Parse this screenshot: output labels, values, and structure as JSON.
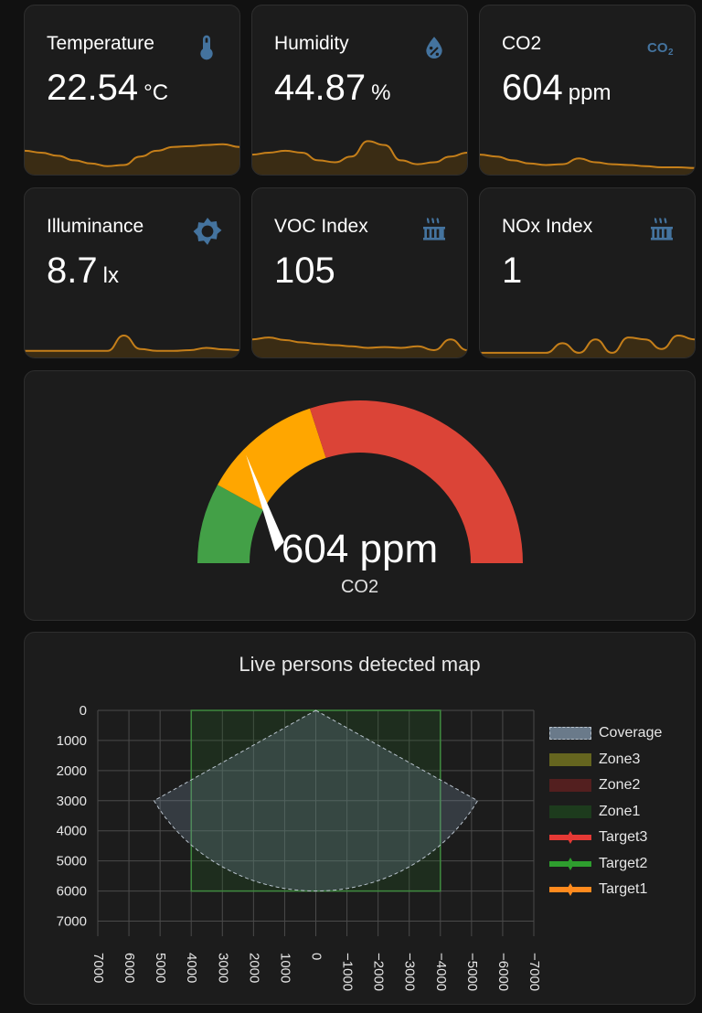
{
  "tiles": [
    {
      "name": "Temperature",
      "value": "22.54",
      "unit": "°C",
      "icon": "thermometer-icon",
      "spark": [
        0.45,
        0.5,
        0.58,
        0.7,
        0.78,
        0.85,
        0.82,
        0.6,
        0.45,
        0.35,
        0.33,
        0.3,
        0.28,
        0.35
      ]
    },
    {
      "name": "Humidity",
      "value": "44.87",
      "unit": "%",
      "icon": "water-percent-icon",
      "spark": [
        0.55,
        0.5,
        0.45,
        0.5,
        0.7,
        0.75,
        0.6,
        0.2,
        0.3,
        0.7,
        0.8,
        0.75,
        0.6,
        0.5
      ]
    },
    {
      "name": "CO2",
      "value": "604",
      "unit": "ppm",
      "icon": "molecule-co2-icon",
      "spark": [
        0.55,
        0.6,
        0.7,
        0.78,
        0.82,
        0.8,
        0.65,
        0.75,
        0.8,
        0.82,
        0.85,
        0.88,
        0.88,
        0.9
      ]
    },
    {
      "name": "Illuminance",
      "value": "8.7",
      "unit": "lx",
      "icon": "brightness-icon",
      "spark": [
        0.9,
        0.9,
        0.9,
        0.9,
        0.9,
        0.9,
        0.5,
        0.85,
        0.9,
        0.9,
        0.88,
        0.82,
        0.86,
        0.88
      ]
    },
    {
      "name": "VOC Index",
      "value": "105",
      "unit": "",
      "icon": "radiator-icon",
      "spark": [
        0.6,
        0.55,
        0.62,
        0.68,
        0.72,
        0.75,
        0.78,
        0.82,
        0.8,
        0.82,
        0.78,
        0.88,
        0.6,
        0.88
      ]
    },
    {
      "name": "NOx Index",
      "value": "1",
      "unit": "",
      "icon": "radiator-icon",
      "spark": [
        0.95,
        0.95,
        0.95,
        0.95,
        0.95,
        0.7,
        0.95,
        0.6,
        0.95,
        0.55,
        0.6,
        0.85,
        0.5,
        0.6
      ]
    }
  ],
  "gauge": {
    "value": 604,
    "min": 0,
    "max": 2500,
    "value_text": "604 ppm",
    "name": "CO2",
    "segments": [
      {
        "from": 0,
        "to": 400,
        "color": "#43a047"
      },
      {
        "from": 400,
        "to": 1000,
        "color": "#ffa600"
      },
      {
        "from": 1000,
        "to": 2500,
        "color": "#db4437"
      }
    ]
  },
  "map": {
    "title": "Live persons detected map",
    "legend": [
      {
        "label": "Coverage",
        "color": "#6a7a8a",
        "style": "area"
      },
      {
        "label": "Zone3",
        "color": "#6e6e20",
        "style": "zone"
      },
      {
        "label": "Zone2",
        "color": "#5a2020",
        "style": "zone"
      },
      {
        "label": "Zone1",
        "color": "#1e3f1e",
        "style": "zone"
      },
      {
        "label": "Target3",
        "color": "#e53935",
        "style": "target"
      },
      {
        "label": "Target2",
        "color": "#2e9e2e",
        "style": "target"
      },
      {
        "label": "Target1",
        "color": "#ff8a1e",
        "style": "target"
      }
    ],
    "y_ticks": [
      "0",
      "1000",
      "2000",
      "3000",
      "4000",
      "5000",
      "6000",
      "7000"
    ],
    "x_ticks": [
      "7000",
      "6000",
      "5000",
      "4000",
      "3000",
      "2000",
      "1000",
      "0",
      "−1000",
      "−2000",
      "−3000",
      "−4000",
      "−5000",
      "−6000",
      "−7000"
    ]
  },
  "chart_data": {
    "type": "area",
    "title": "Live persons detected map",
    "xlim": [
      7000,
      -7000
    ],
    "ylim": [
      0,
      7500
    ],
    "y_inverted": true,
    "grid": true,
    "legend_position": "right",
    "series": [
      {
        "name": "Coverage",
        "shape": "sector",
        "origin": [
          0,
          0
        ],
        "radius": 6000,
        "angle_deg": 120
      },
      {
        "name": "Zone1",
        "shape": "rect",
        "x": [
          4000,
          -4000
        ],
        "y": [
          0,
          6000
        ]
      },
      {
        "name": "Zone2",
        "shape": "none"
      },
      {
        "name": "Zone3",
        "shape": "none"
      },
      {
        "name": "Target1",
        "points": []
      },
      {
        "name": "Target2",
        "points": []
      },
      {
        "name": "Target3",
        "points": []
      }
    ]
  },
  "colors": {
    "accent": "#44739e",
    "spark": "#c57f1a",
    "spark_fill": "#3a2c14"
  }
}
